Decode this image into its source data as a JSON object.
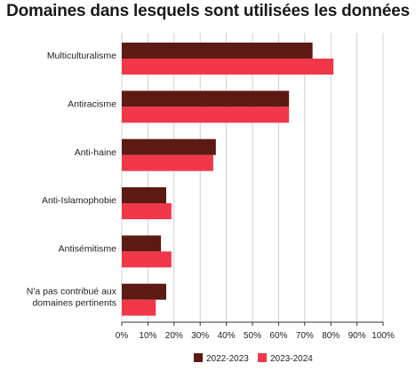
{
  "chart_data": {
    "type": "bar",
    "orientation": "horizontal",
    "title": "Domaines dans lesquels sont utilisées les données",
    "categories": [
      "Multiculturalisme",
      "Antiracisme",
      "Anti-haine",
      "Anti-Islamophobie",
      "Antisémitisme",
      "N'a pas contribué aux domaines pertinents"
    ],
    "category_lines": [
      [
        "Multiculturalisme"
      ],
      [
        "Antiracisme"
      ],
      [
        "Anti-haine"
      ],
      [
        "Anti-Islamophobie"
      ],
      [
        "Antisémitisme"
      ],
      [
        "N'a pas contribué aux",
        "domaines pertinents"
      ]
    ],
    "series": [
      {
        "name": "2022-2023",
        "color": "#5c1a12",
        "values": [
          73,
          64,
          36,
          17,
          15,
          17
        ]
      },
      {
        "name": "2023-2024",
        "color": "#f0384a",
        "values": [
          81,
          64,
          35,
          19,
          19,
          13
        ]
      }
    ],
    "xlim": [
      0,
      100
    ],
    "xticks": [
      "0%",
      "10%",
      "20%",
      "30%",
      "40%",
      "50%",
      "60%",
      "70%",
      "80%",
      "90%",
      "100%"
    ],
    "grid": true,
    "legend_position": "bottom"
  }
}
